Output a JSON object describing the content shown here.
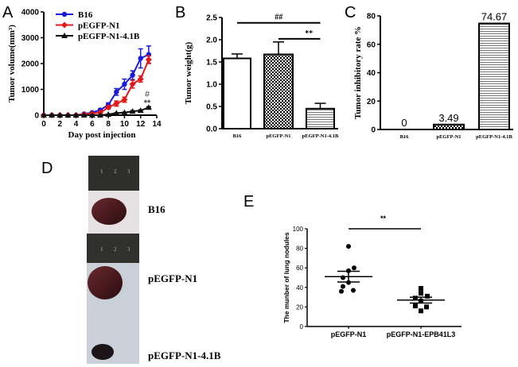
{
  "panel_letters": {
    "A": "A",
    "B": "B",
    "C": "C",
    "D": "D",
    "E": "E"
  },
  "chart_data": [
    {
      "type": "line",
      "panel": "A",
      "title": "",
      "xlabel": "Day post injection",
      "ylabel": "Tumor volume(mm³)",
      "xlim": [
        0,
        14
      ],
      "ylim": [
        0,
        4000
      ],
      "xticks": [
        "0",
        "2",
        "4",
        "6",
        "8",
        "10",
        "12",
        "14"
      ],
      "yticks": [
        "0",
        "1000",
        "2000",
        "3000",
        "4000"
      ],
      "legend": "top-left",
      "x": [
        0,
        1,
        2,
        3,
        4,
        5,
        6,
        7,
        8,
        9,
        10,
        11,
        12,
        13
      ],
      "series": [
        {
          "name": "B16",
          "color": "#1a1adb",
          "marker": "circle",
          "values": [
            0,
            0,
            0,
            0,
            0,
            50,
            100,
            200,
            400,
            900,
            1200,
            1550,
            2200,
            2350
          ],
          "errors": [
            0,
            0,
            0,
            0,
            0,
            20,
            30,
            50,
            80,
            130,
            200,
            170,
            370,
            330
          ]
        },
        {
          "name": "pEGFP-N1",
          "color": "#e01818",
          "marker": "diamond",
          "values": [
            0,
            0,
            0,
            0,
            0,
            30,
            60,
            100,
            300,
            450,
            600,
            1200,
            1400,
            2150
          ],
          "errors": [
            0,
            0,
            0,
            0,
            0,
            15,
            20,
            40,
            60,
            100,
            100,
            150,
            120,
            150
          ]
        },
        {
          "name": "pEGFP-N1-4.1B",
          "color": "#111111",
          "marker": "triangle",
          "values": [
            0,
            0,
            0,
            0,
            0,
            0,
            0,
            0,
            30,
            80,
            100,
            150,
            180,
            300
          ],
          "errors": [
            0,
            0,
            0,
            0,
            0,
            0,
            0,
            0,
            10,
            15,
            20,
            25,
            25,
            30
          ]
        }
      ],
      "annotations": [
        "#",
        "**"
      ]
    },
    {
      "type": "bar",
      "panel": "B",
      "title": "",
      "xlabel": "",
      "ylabel": "Tumor weight(g)",
      "ylim": [
        0,
        2.5
      ],
      "yticks": [
        "0.0",
        "0.5",
        "1.0",
        "1.5",
        "2.0",
        "2.5"
      ],
      "categories": [
        "B16",
        "pEGFP-N1",
        "pEGFP-N1-4.1B"
      ],
      "values": [
        1.58,
        1.67,
        0.45
      ],
      "errors": [
        0.1,
        0.28,
        0.12
      ],
      "fill_patterns": [
        "none",
        "checker",
        "horizontal-lines"
      ],
      "significance": [
        {
          "from": "B16",
          "to": "pEGFP-N1-4.1B",
          "level": 2.38,
          "label": "##"
        },
        {
          "from": "pEGFP-N1",
          "to": "pEGFP-N1-4.1B",
          "level": 2.02,
          "label": "**"
        }
      ]
    },
    {
      "type": "bar",
      "panel": "C",
      "title": "",
      "xlabel": "",
      "ylabel": "Tumor inhibitory rate %",
      "ylim": [
        0,
        80
      ],
      "yticks": [
        "0",
        "20",
        "40",
        "60",
        "80"
      ],
      "categories": [
        "B16",
        "pEGFP-N1",
        "pEGFP-N1-4.1B"
      ],
      "values": [
        0,
        3.49,
        74.67
      ],
      "data_labels": [
        "0",
        "3.49",
        "74.67"
      ],
      "fill_patterns": [
        "none",
        "checker",
        "horizontal-lines"
      ]
    },
    {
      "type": "scatter",
      "panel": "E",
      "title": "",
      "xlabel": "",
      "ylabel": "The munber of lung nodules",
      "ylim": [
        0,
        100
      ],
      "yticks": [
        "0",
        "20",
        "40",
        "60",
        "80",
        "100"
      ],
      "categories": [
        "pEGFP-N1",
        "pEGFP-N1-EPB41L3"
      ],
      "groups": [
        {
          "marker": "circle",
          "values": [
            82,
            60,
            57,
            50,
            45,
            41,
            36,
            37
          ],
          "mean": 51,
          "sem": 5.5
        },
        {
          "marker": "square",
          "values": [
            39,
            34,
            31,
            29,
            26,
            21,
            20,
            16
          ],
          "mean": 27,
          "sem": 3
        }
      ],
      "significance": [
        {
          "from": "pEGFP-N1",
          "to": "pEGFP-N1-EPB41L3",
          "level": 100,
          "label": "**"
        }
      ]
    }
  ],
  "panel_d": {
    "ruler_marks": [
      "1",
      "2",
      "3"
    ],
    "labels": [
      "B16",
      "pEGFP-N1",
      "pEGFP-N1-4.1B"
    ]
  }
}
